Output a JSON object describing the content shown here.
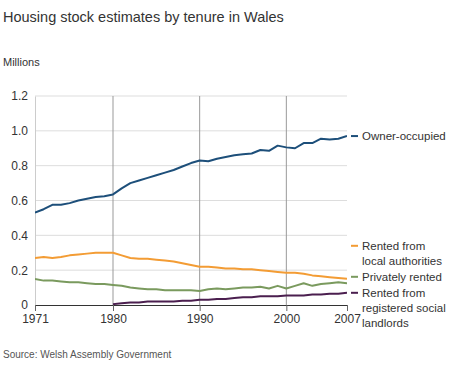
{
  "chart_data": {
    "type": "line",
    "title": "Housing stock estimates by tenure in Wales",
    "ylabel": "Millions",
    "source": "Source: Welsh Assembly Government",
    "x": [
      1971,
      1972,
      1973,
      1974,
      1975,
      1976,
      1977,
      1978,
      1979,
      1980,
      1981,
      1982,
      1983,
      1984,
      1985,
      1986,
      1987,
      1988,
      1989,
      1990,
      1991,
      1992,
      1993,
      1994,
      1995,
      1996,
      1997,
      1998,
      1999,
      2000,
      2001,
      2002,
      2003,
      2004,
      2005,
      2006,
      2007
    ],
    "xlim": [
      1971,
      2007
    ],
    "xticks": [
      1971,
      1980,
      1990,
      2000,
      2007
    ],
    "ylim": [
      0,
      1.2
    ],
    "yticks": [
      0,
      0.2,
      0.4,
      0.6,
      0.8,
      {
        "value": 1,
        "label": "1.0"
      },
      1.2
    ],
    "grid": true,
    "series": [
      {
        "name": "Owner-occupied",
        "color": "#1d4f7a",
        "values": [
          0.53,
          0.55,
          0.575,
          0.575,
          0.585,
          0.6,
          0.61,
          0.62,
          0.625,
          0.635,
          0.67,
          0.7,
          0.715,
          0.73,
          0.745,
          0.76,
          0.775,
          0.795,
          0.815,
          0.83,
          0.825,
          0.84,
          0.85,
          0.86,
          0.865,
          0.87,
          0.89,
          0.885,
          0.915,
          0.905,
          0.9,
          0.93,
          0.93,
          0.955,
          0.95,
          0.955,
          0.97
        ]
      },
      {
        "name": "Rented from\nlocal authorities",
        "color": "#f39c34",
        "values": [
          0.27,
          0.275,
          0.27,
          0.275,
          0.285,
          0.29,
          0.295,
          0.3,
          0.3,
          0.3,
          0.285,
          0.27,
          0.265,
          0.265,
          0.26,
          0.255,
          0.25,
          0.24,
          0.23,
          0.22,
          0.22,
          0.215,
          0.21,
          0.21,
          0.205,
          0.205,
          0.2,
          0.195,
          0.19,
          0.185,
          0.185,
          0.18,
          0.17,
          0.165,
          0.16,
          0.155,
          0.15
        ]
      },
      {
        "name": "Privately rented",
        "color": "#7a9a5e",
        "values": [
          0.15,
          0.14,
          0.14,
          0.135,
          0.13,
          0.13,
          0.125,
          0.12,
          0.12,
          0.115,
          0.11,
          0.1,
          0.095,
          0.09,
          0.09,
          0.085,
          0.085,
          0.085,
          0.085,
          0.08,
          0.09,
          0.095,
          0.09,
          0.095,
          0.1,
          0.1,
          0.105,
          0.095,
          0.11,
          0.095,
          0.11,
          0.125,
          0.11,
          0.12,
          0.125,
          0.13,
          0.125
        ]
      },
      {
        "name": "Rented from\nregistered social\nlandlords",
        "color": "#4b1f4f",
        "values": [
          null,
          null,
          null,
          null,
          null,
          null,
          null,
          null,
          null,
          0.005,
          0.01,
          0.015,
          0.015,
          0.02,
          0.02,
          0.02,
          0.02,
          0.025,
          0.025,
          0.03,
          0.03,
          0.035,
          0.035,
          0.04,
          0.045,
          0.045,
          0.05,
          0.05,
          0.05,
          0.055,
          0.055,
          0.055,
          0.06,
          0.06,
          0.065,
          0.065,
          0.07
        ]
      }
    ]
  }
}
